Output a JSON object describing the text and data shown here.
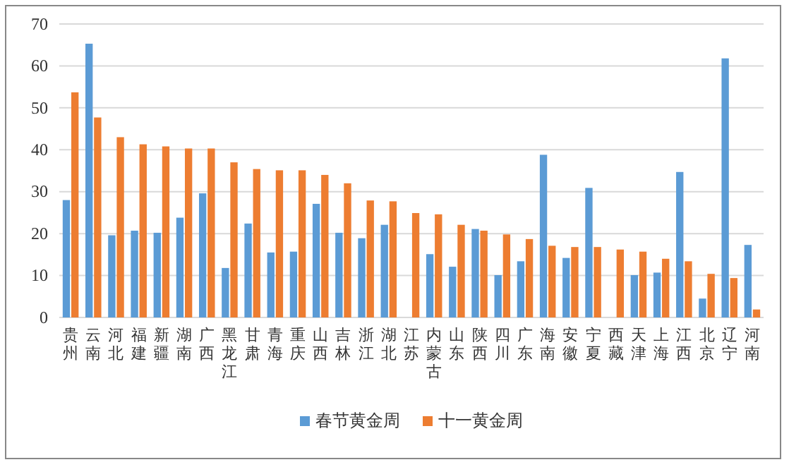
{
  "chart_data": {
    "type": "bar",
    "categories": [
      "贵州",
      "云南",
      "河北",
      "福建",
      "新疆",
      "湖南",
      "广西",
      "黑龙江",
      "甘肃",
      "青海",
      "重庆",
      "山西",
      "吉林",
      "浙江",
      "湖北",
      "江苏",
      "内蒙古",
      "山东",
      "陕西",
      "四川",
      "广东",
      "海南",
      "安徽",
      "宁夏",
      "西藏",
      "天津",
      "上海",
      "江西",
      "北京",
      "辽宁",
      "河南"
    ],
    "series": [
      {
        "name": "春节黄金周",
        "color": "#5b9bd5",
        "values": [
          28,
          65.3,
          19.6,
          20.7,
          20.2,
          23.8,
          29.6,
          11.8,
          22.4,
          15.5,
          15.7,
          27.1,
          20.2,
          18.9,
          22.1,
          null,
          15.1,
          12.1,
          21.1,
          10.1,
          13.4,
          38.8,
          14.2,
          30.9,
          null,
          10.1,
          10.7,
          34.7,
          4.5,
          61.8,
          17.3
        ]
      },
      {
        "name": "十一黄金周",
        "color": "#ed7d31",
        "values": [
          53.7,
          47.7,
          43,
          41.3,
          40.8,
          40.3,
          40.3,
          37,
          35.4,
          35.1,
          35.1,
          34,
          32,
          27.9,
          27.7,
          24.9,
          24.6,
          22.1,
          20.7,
          19.8,
          18.7,
          17.1,
          16.8,
          16.8,
          16.2,
          15.7,
          14,
          13.4,
          10.4,
          9.4,
          1.9
        ]
      }
    ],
    "ylim": [
      0,
      70
    ],
    "yticks": [
      0,
      10,
      20,
      30,
      40,
      50,
      60,
      70
    ],
    "grid": "y",
    "legend": "bottom"
  }
}
